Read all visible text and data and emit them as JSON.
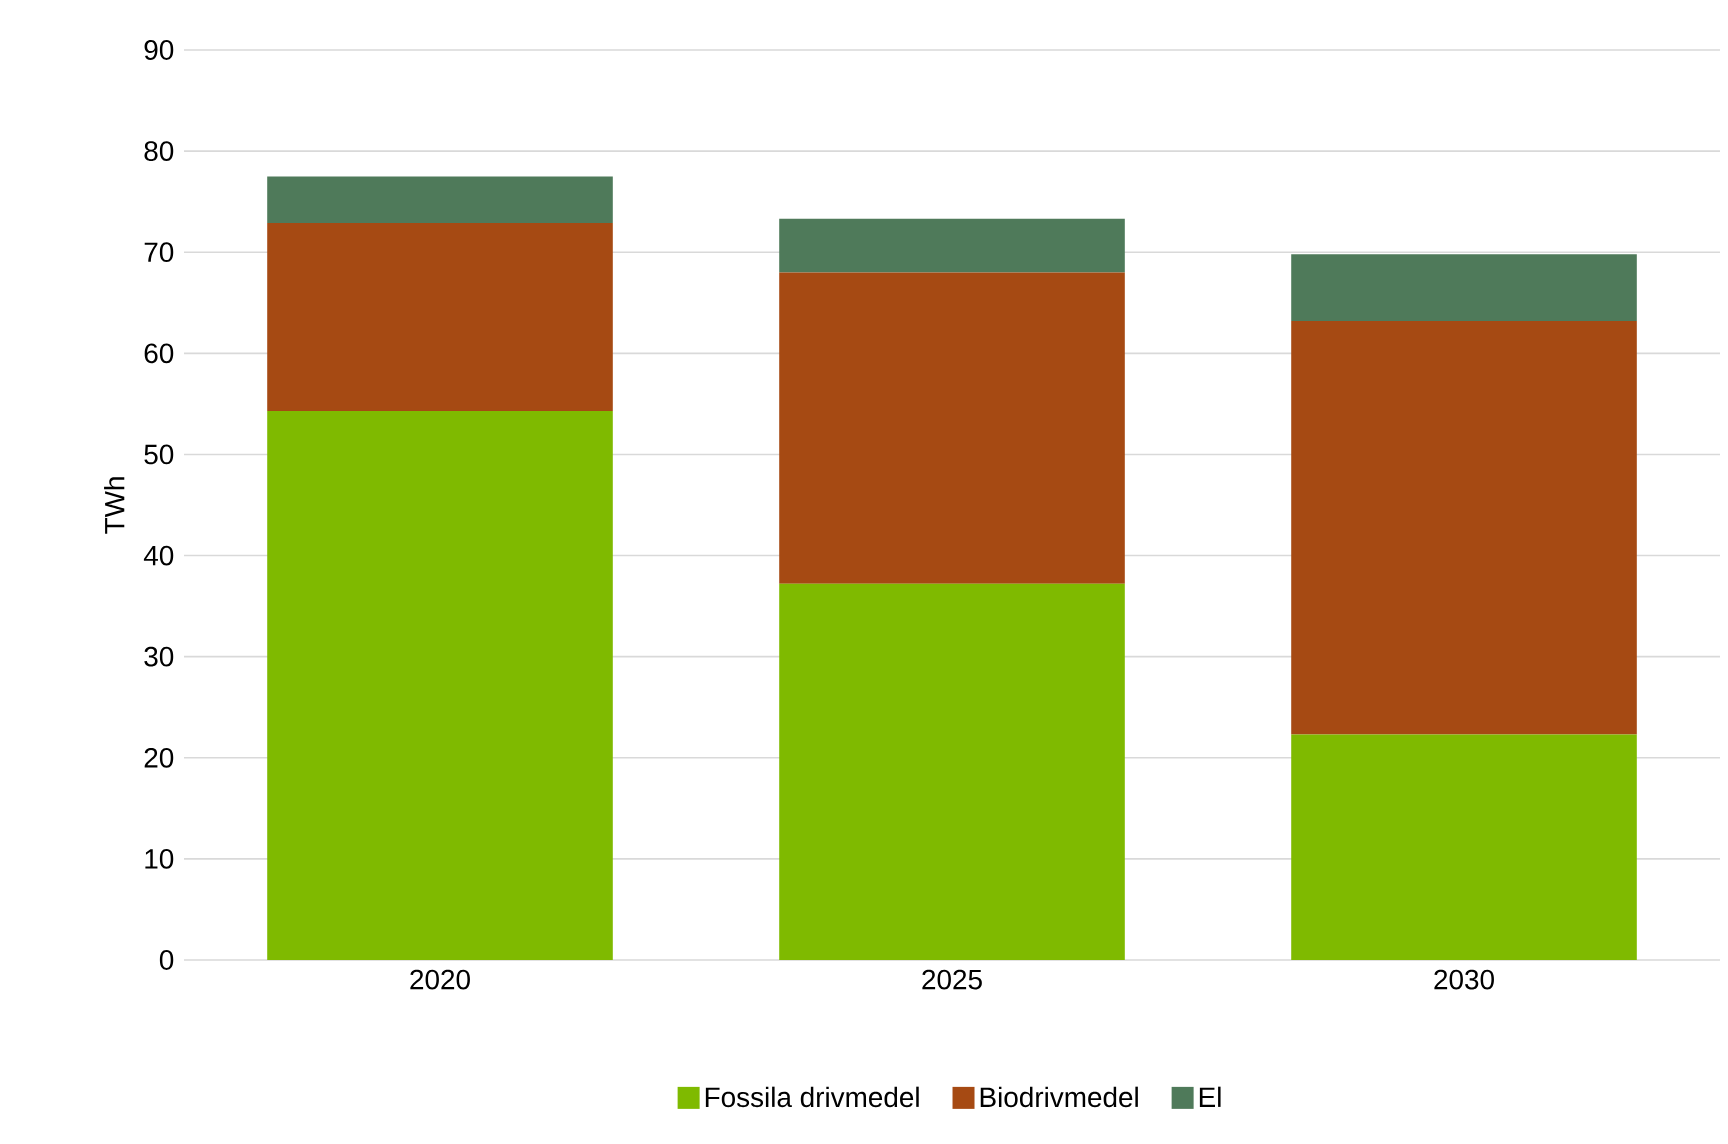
{
  "chart_data": {
    "type": "bar",
    "stacked": true,
    "ylabel": "TWh",
    "categories": [
      "2020",
      "2025",
      "2030"
    ],
    "series": [
      {
        "name": "Fossila drivmedel",
        "color": "#7fba00",
        "values": [
          54.3,
          37.2,
          22.3
        ]
      },
      {
        "name": "Biodrivmedel",
        "color": "#a64a13",
        "values": [
          18.6,
          30.8,
          40.9
        ]
      },
      {
        "name": "El",
        "color": "#4f7a5a",
        "values": [
          4.6,
          5.3,
          6.6
        ]
      }
    ],
    "ylim": [
      0,
      90
    ],
    "yticks": [
      0,
      10,
      20,
      30,
      40,
      50,
      60,
      70,
      80,
      90
    ],
    "grid": "y",
    "legend": "bottom"
  }
}
